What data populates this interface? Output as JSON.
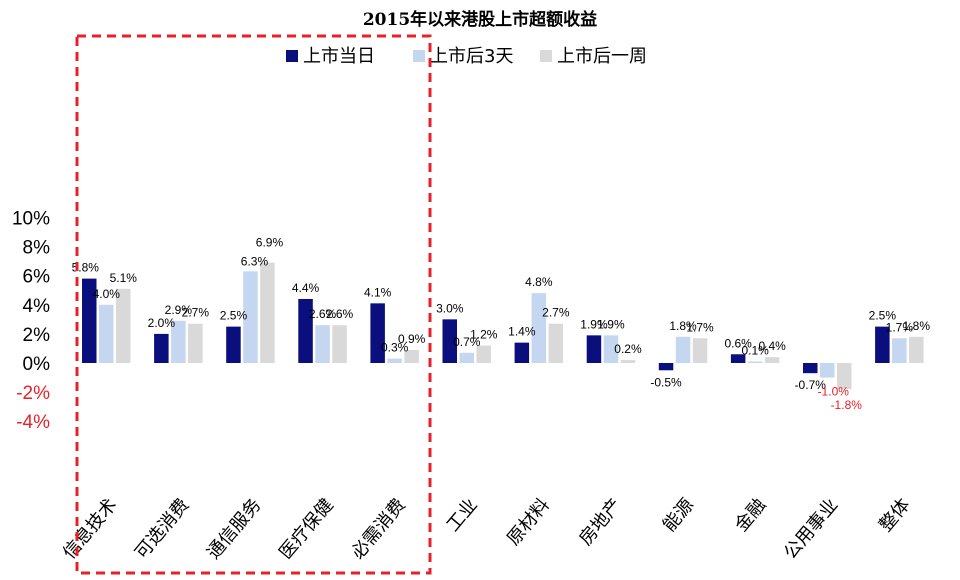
{
  "chart_data": {
    "type": "bar",
    "title": "2015年以来港股上市超额收益",
    "categories": [
      "信息技术",
      "可选消费",
      "通信服务",
      "医疗保健",
      "必需消费",
      "工业",
      "原材料",
      "房地产",
      "能源",
      "金融",
      "公用事业",
      "整体"
    ],
    "series": [
      {
        "name": "上市当日",
        "color": "#0a0f7d",
        "values": [
          5.8,
          2.0,
          2.5,
          4.4,
          4.1,
          3.0,
          1.4,
          1.9,
          -0.5,
          0.6,
          -0.7,
          2.5
        ]
      },
      {
        "name": "上市后3天",
        "color": "#c5d6f0",
        "values": [
          4.0,
          2.9,
          6.3,
          2.6,
          0.3,
          0.7,
          4.8,
          1.9,
          1.8,
          0.1,
          -1.0,
          1.7
        ]
      },
      {
        "name": "上市后一周",
        "color": "#d9d9d9",
        "values": [
          5.1,
          2.7,
          6.9,
          2.6,
          0.9,
          1.2,
          2.7,
          0.2,
          1.7,
          0.4,
          -1.8,
          1.8
        ]
      }
    ],
    "data_labels": [
      [
        "5.8%",
        "2.0%",
        "2.5%",
        "4.4%",
        "4.1%",
        "3.0%",
        "1.4%",
        "1.9%",
        "-0.5%",
        "0.6%",
        "-0.7%",
        "2.5%"
      ],
      [
        "4.0%",
        "2.9%",
        "6.3%",
        "2.6%",
        "0.3%",
        "0.7%",
        "4.8%",
        "1.9%",
        "1.8%",
        "0.1%",
        "-1.0%",
        "1.7%"
      ],
      [
        "5.1%",
        "2.7%",
        "6.9%",
        "2.6%",
        "0.9%",
        "1.2%",
        "2.7%",
        "0.2%",
        "1.7%",
        "0.4%",
        "-1.8%",
        "1.8%"
      ]
    ],
    "y_ticks": [
      10,
      8,
      6,
      4,
      2,
      0,
      -2,
      -4
    ],
    "y_tick_labels": [
      "10%",
      "8%",
      "6%",
      "4%",
      "2%",
      "0%",
      "-2%",
      "-4%"
    ],
    "ylim": [
      -4,
      10
    ],
    "negative_tick_color": "#e8202a",
    "negative_label_color": "#e8202a",
    "legend_position": "top-center",
    "grid": false,
    "highlight": {
      "style": "dashed-box",
      "color": "#e8202a",
      "categories": [
        "信息技术",
        "可选消费",
        "通信服务",
        "医疗保健",
        "必需消费"
      ]
    }
  }
}
